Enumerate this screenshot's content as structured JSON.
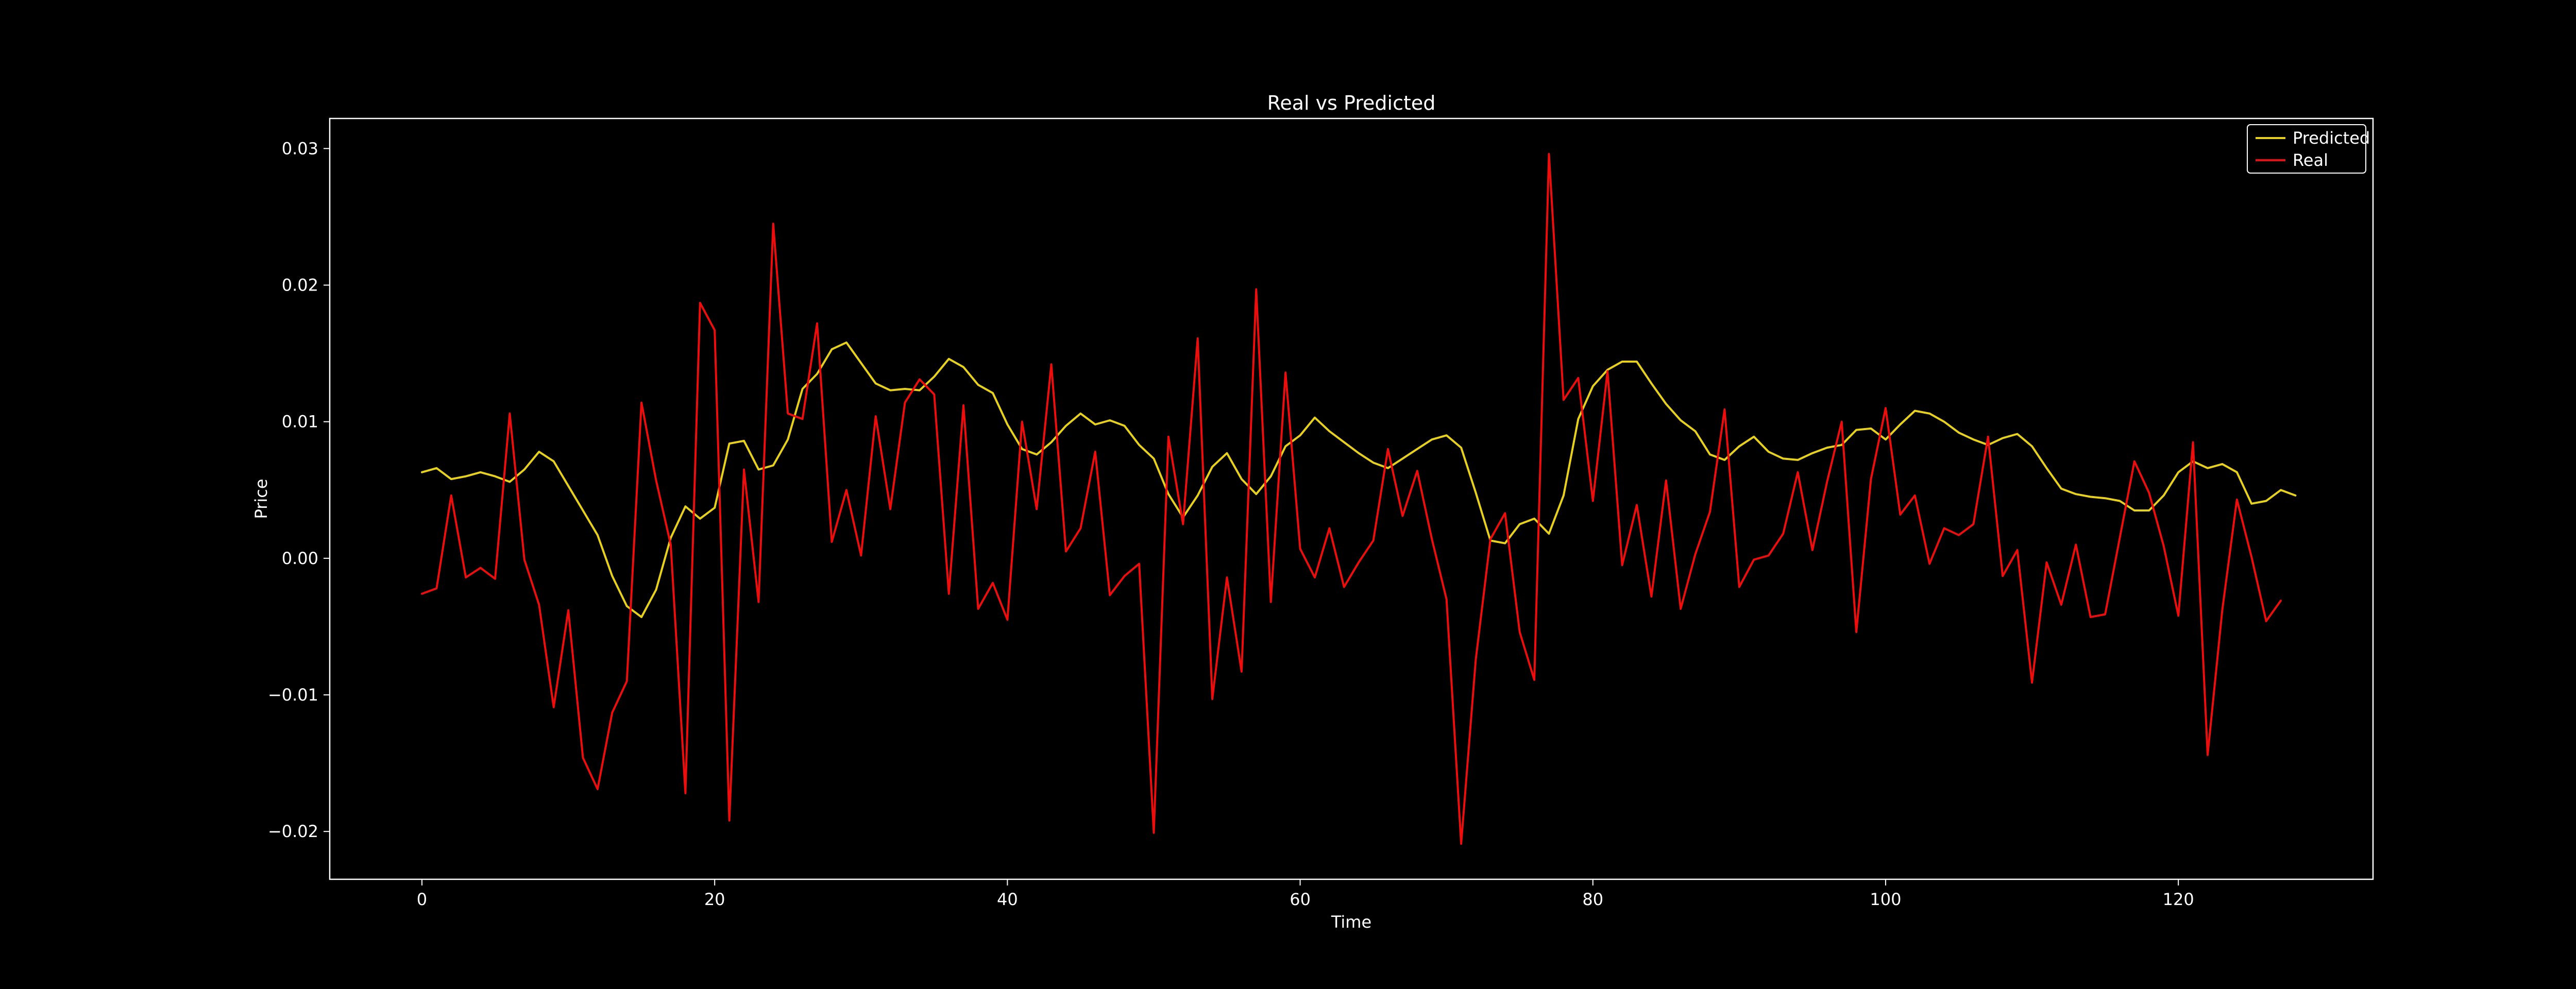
{
  "chart_data": {
    "type": "line",
    "title": "Real vs Predicted",
    "xlabel": "Time",
    "ylabel": "Price",
    "xlim": [
      -6.3,
      133.3
    ],
    "ylim": [
      -0.0235,
      0.0322
    ],
    "xticks": [
      0,
      20,
      40,
      60,
      80,
      100,
      120
    ],
    "xtick_labels": [
      "0",
      "20",
      "40",
      "60",
      "80",
      "100",
      "120"
    ],
    "yticks": [
      -0.02,
      -0.01,
      0.0,
      0.01,
      0.02,
      0.03
    ],
    "ytick_labels": [
      "−0.02",
      "−0.01",
      "0.00",
      "0.01",
      "0.02",
      "0.03"
    ],
    "grid": false,
    "legend_position": "upper right",
    "background_color": "#000000",
    "foreground_color": "#ffffff",
    "series": [
      {
        "name": "Predicted",
        "color": "#e8d11c",
        "x_start": 0,
        "values": [
          0.0063,
          0.0066,
          0.0058,
          0.006,
          0.0063,
          0.006,
          0.0056,
          0.0065,
          0.0078,
          0.0071,
          0.0053,
          0.0035,
          0.0017,
          -0.0013,
          -0.0035,
          -0.0043,
          -0.0023,
          0.0015,
          0.0038,
          0.0029,
          0.0037,
          0.0084,
          0.0086,
          0.0065,
          0.0068,
          0.0087,
          0.0124,
          0.0135,
          0.0153,
          0.0158,
          0.0143,
          0.0128,
          0.0123,
          0.0124,
          0.0123,
          0.0133,
          0.0146,
          0.014,
          0.0127,
          0.0121,
          0.0098,
          0.008,
          0.0076,
          0.0085,
          0.0097,
          0.0106,
          0.0098,
          0.0101,
          0.0097,
          0.0083,
          0.0073,
          0.0047,
          0.003,
          0.0046,
          0.0067,
          0.0077,
          0.0058,
          0.0047,
          0.006,
          0.0082,
          0.009,
          0.0103,
          0.0093,
          0.0085,
          0.0077,
          0.007,
          0.0066,
          0.0073,
          0.008,
          0.0087,
          0.009,
          0.0081,
          0.0048,
          0.0013,
          0.0011,
          0.0025,
          0.0029,
          0.0018,
          0.0046,
          0.0102,
          0.0126,
          0.0138,
          0.0144,
          0.0144,
          0.0128,
          0.0113,
          0.0101,
          0.0093,
          0.0076,
          0.0072,
          0.0082,
          0.0089,
          0.0078,
          0.0073,
          0.0072,
          0.0077,
          0.0081,
          0.0083,
          0.0094,
          0.0095,
          0.0087,
          0.0098,
          0.0108,
          0.0106,
          0.01,
          0.0092,
          0.0087,
          0.0083,
          0.0088,
          0.0091,
          0.0082,
          0.0066,
          0.0051,
          0.0047,
          0.0045,
          0.0044,
          0.0042,
          0.0035,
          0.0035,
          0.0046,
          0.0063,
          0.0071,
          0.0066,
          0.0069,
          0.0063,
          0.004,
          0.0042,
          0.005,
          0.0046
        ]
      },
      {
        "name": "Real",
        "color": "#ee0d0d",
        "x_start": 0,
        "values": [
          -0.0026,
          -0.0022,
          0.0046,
          -0.0014,
          -0.0007,
          -0.0015,
          0.0106,
          -0.0001,
          -0.0034,
          -0.0109,
          -0.0038,
          -0.0146,
          -0.0169,
          -0.0113,
          -0.009,
          0.0114,
          0.0057,
          0.001,
          -0.0172,
          0.0187,
          0.0167,
          -0.0192,
          0.0065,
          -0.0032,
          0.0245,
          0.0106,
          0.0102,
          0.0172,
          0.0012,
          0.005,
          0.0002,
          0.0104,
          0.0036,
          0.0114,
          0.0131,
          0.012,
          -0.0026,
          0.0112,
          -0.0037,
          -0.0018,
          -0.0045,
          0.01,
          0.0036,
          0.0142,
          0.0005,
          0.0022,
          0.0078,
          -0.0027,
          -0.0013,
          -0.0004,
          -0.0201,
          0.0089,
          0.0025,
          0.0161,
          -0.0103,
          -0.0014,
          -0.0083,
          0.0197,
          -0.0032,
          0.0136,
          0.0007,
          -0.0014,
          0.0022,
          -0.0021,
          -0.0003,
          0.0013,
          0.008,
          0.0031,
          0.0064,
          0.0014,
          -0.003,
          -0.0209,
          -0.0074,
          0.0014,
          0.0033,
          -0.0054,
          -0.0089,
          0.0296,
          0.0116,
          0.0132,
          0.0042,
          0.0137,
          -0.0005,
          0.0039,
          -0.0028,
          0.0057,
          -0.0037,
          0.0003,
          0.0034,
          0.0109,
          -0.0021,
          -0.0001,
          0.0002,
          0.0018,
          0.0063,
          0.0006,
          0.0056,
          0.01,
          -0.0054,
          0.0058,
          0.011,
          0.0032,
          0.0046,
          -0.0004,
          0.0022,
          0.0017,
          0.0025,
          0.0089,
          -0.0013,
          0.0006,
          -0.0091,
          -0.0003,
          -0.0034,
          0.001,
          -0.0043,
          -0.0041,
          0.0015,
          0.0071,
          0.0048,
          0.0009,
          -0.0042,
          0.0085,
          -0.0144,
          -0.0038,
          0.0043,
          0.0001,
          -0.0046,
          -0.0031
        ]
      }
    ]
  }
}
